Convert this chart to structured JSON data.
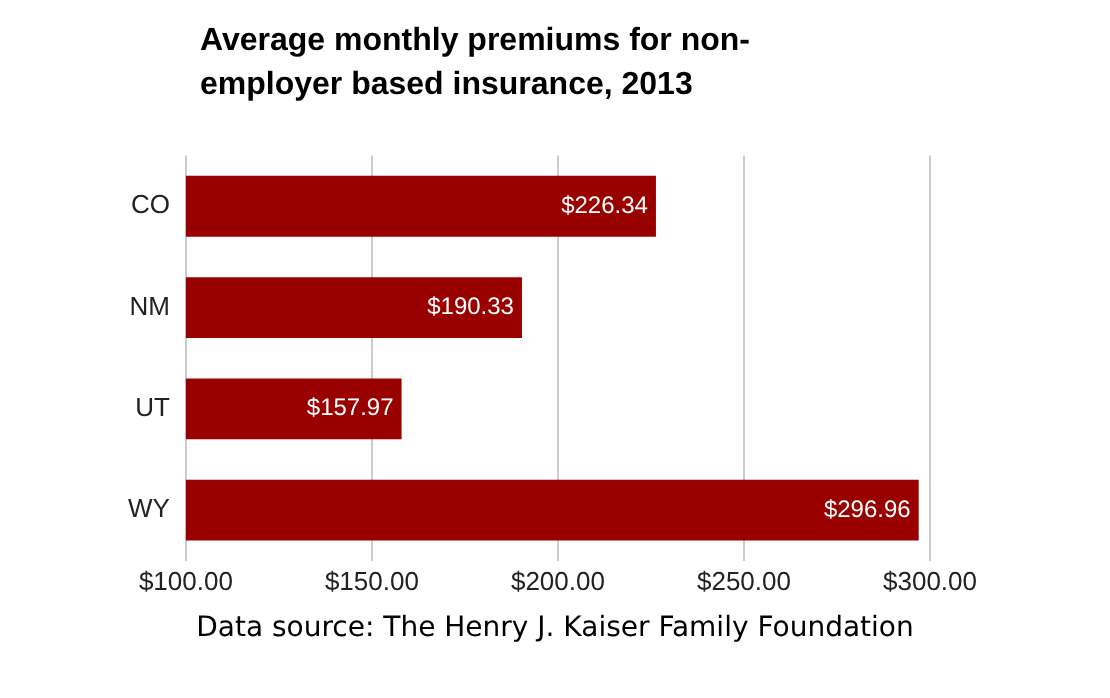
{
  "chart_data": {
    "type": "bar",
    "orientation": "horizontal",
    "title": "Average monthly premiums for non-employer based insurance, 2013",
    "categories": [
      "CO",
      "NM",
      "UT",
      "WY"
    ],
    "values": [
      226.34,
      190.33,
      157.97,
      296.96
    ],
    "value_labels": [
      "$226.34",
      "$190.33",
      "$157.97",
      "$296.96"
    ],
    "color": "#990000",
    "xlim": [
      100,
      300
    ],
    "xticks": [
      {
        "value": 100,
        "label": "$100.00"
      },
      {
        "value": 150,
        "label": "$150.00"
      },
      {
        "value": 200,
        "label": "$200.00"
      },
      {
        "value": 250,
        "label": "$250.00"
      },
      {
        "value": 300,
        "label": "$300.00"
      }
    ],
    "grid": "x",
    "legend": false,
    "annotations": [
      "Data source: The Henry J. Kaiser Family Foundation"
    ]
  }
}
